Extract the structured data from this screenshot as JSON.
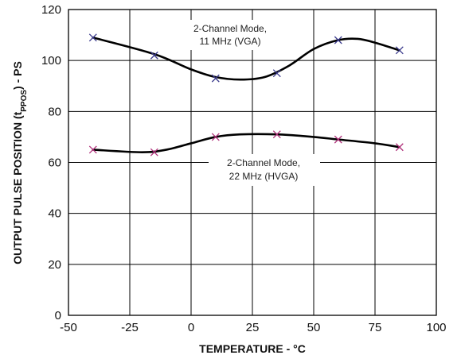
{
  "chart_data": {
    "type": "line",
    "xlabel": "TEMPERATURE - °C",
    "ylabel_main": "OUTPUT PULSE POSITION (t",
    "ylabel_sub": "PPOS",
    "ylabel_tail": ") - PS",
    "xlim": [
      -50,
      100
    ],
    "ylim": [
      0,
      120
    ],
    "xticks": [
      -50,
      -25,
      0,
      25,
      50,
      75,
      100
    ],
    "yticks": [
      0,
      20,
      40,
      60,
      80,
      100,
      120
    ],
    "grid": true,
    "series": [
      {
        "name": "2-Channel Mode, 11 MHz (VGA)",
        "label_lines": [
          "2-Channel Mode,",
          "11 MHz (VGA)"
        ],
        "marker_color": "#3a3a8c",
        "points": [
          {
            "x": -40,
            "y": 109
          },
          {
            "x": -15,
            "y": 102
          },
          {
            "x": 10,
            "y": 93
          },
          {
            "x": 35,
            "y": 95
          },
          {
            "x": 60,
            "y": 108
          },
          {
            "x": 85,
            "y": 104
          }
        ],
        "curve": [
          {
            "x": -40,
            "y": 109
          },
          {
            "x": -15,
            "y": 102.5
          },
          {
            "x": 0,
            "y": 96.5
          },
          {
            "x": 10,
            "y": 93.5
          },
          {
            "x": 20,
            "y": 92.5
          },
          {
            "x": 30,
            "y": 93.5
          },
          {
            "x": 40,
            "y": 98
          },
          {
            "x": 50,
            "y": 104.5
          },
          {
            "x": 60,
            "y": 108
          },
          {
            "x": 68,
            "y": 108.5
          },
          {
            "x": 75,
            "y": 107
          },
          {
            "x": 85,
            "y": 104
          }
        ]
      },
      {
        "name": "2-Channel Mode, 22 MHz (HVGA)",
        "label_lines": [
          "2-Channel Mode,",
          "22 MHz (HVGA)"
        ],
        "marker_color": "#b0307a",
        "points": [
          {
            "x": -40,
            "y": 65
          },
          {
            "x": -15,
            "y": 64
          },
          {
            "x": 10,
            "y": 70
          },
          {
            "x": 35,
            "y": 71
          },
          {
            "x": 60,
            "y": 69
          },
          {
            "x": 85,
            "y": 66
          }
        ],
        "curve": [
          {
            "x": -40,
            "y": 65
          },
          {
            "x": -20,
            "y": 64
          },
          {
            "x": -10,
            "y": 65
          },
          {
            "x": 0,
            "y": 67.5
          },
          {
            "x": 10,
            "y": 70
          },
          {
            "x": 20,
            "y": 71
          },
          {
            "x": 35,
            "y": 71
          },
          {
            "x": 50,
            "y": 70
          },
          {
            "x": 60,
            "y": 69
          },
          {
            "x": 75,
            "y": 67.5
          },
          {
            "x": 85,
            "y": 66
          }
        ]
      }
    ]
  }
}
